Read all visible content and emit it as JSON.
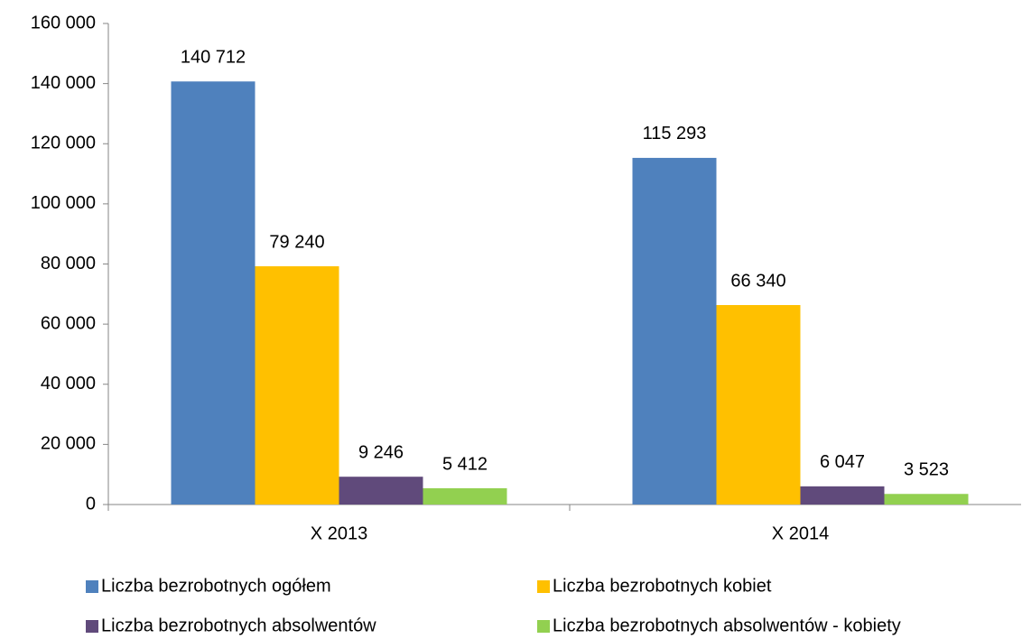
{
  "chart_data": {
    "type": "bar",
    "categories": [
      "X 2013",
      "X 2014"
    ],
    "series": [
      {
        "name": "Liczba bezrobotnych ogółem",
        "color": "#4f81bd",
        "values": [
          140712,
          115293
        ],
        "value_labels": [
          "140 712",
          "115 293"
        ]
      },
      {
        "name": "Liczba bezrobotnych kobiet",
        "color": "#ffc000",
        "values": [
          79240,
          66340
        ],
        "value_labels": [
          "79 240",
          "66 340"
        ]
      },
      {
        "name": "Liczba bezrobotnych absolwentów",
        "color": "#604a7b",
        "values": [
          9246,
          6047
        ],
        "value_labels": [
          "9 246",
          "6 047"
        ]
      },
      {
        "name": "Liczba bezrobotnych absolwentów - kobiety",
        "color": "#92d050",
        "values": [
          5412,
          3523
        ],
        "value_labels": [
          "5 412",
          "3 523"
        ]
      }
    ],
    "ylim": [
      0,
      160000
    ],
    "yticks": [
      0,
      {
        "value": 20000,
        "label": "20 000"
      },
      {
        "value": 40000,
        "label": "40 000"
      },
      {
        "value": 60000,
        "label": "60 000"
      },
      {
        "value": 80000,
        "label": "80 000"
      },
      {
        "value": 100000,
        "label": "100 000"
      },
      {
        "value": 120000,
        "label": "120 000"
      },
      {
        "value": 140000,
        "label": "140 000"
      },
      {
        "value": 160000,
        "label": "160 000"
      }
    ],
    "grid": false,
    "legend": "bottom"
  }
}
